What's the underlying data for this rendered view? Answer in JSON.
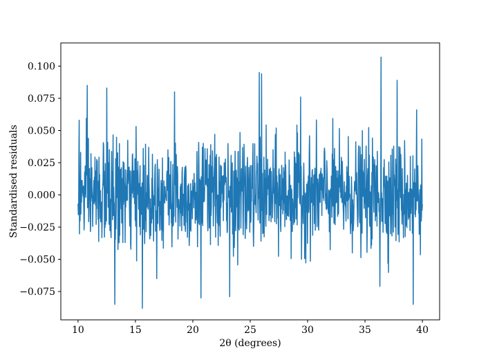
{
  "chart_data": {
    "type": "line",
    "title": "",
    "xlabel": "2θ (degrees)",
    "ylabel": "Standardised residuals",
    "xlim": [
      8.5,
      41.5
    ],
    "ylim": [
      -0.097,
      0.118
    ],
    "xticks": [
      10,
      15,
      20,
      25,
      30,
      35,
      40
    ],
    "xtick_labels": [
      "10",
      "15",
      "20",
      "25",
      "30",
      "35",
      "40"
    ],
    "yticks": [
      -0.075,
      -0.05,
      -0.025,
      0.0,
      0.025,
      0.05,
      0.075,
      0.1
    ],
    "ytick_labels": [
      "−0.075",
      "−0.050",
      "−0.025",
      "0.000",
      "0.025",
      "0.050",
      "0.075",
      "0.100"
    ],
    "grid": false,
    "legend": "none",
    "series_color": "#1f77b4",
    "sampling": {
      "x_start": 10.0,
      "x_end": 40.0,
      "num_points": 1200,
      "distribution": "noise centered at 0, std approx 0.02"
    },
    "notable_points": [
      {
        "x": 10.1,
        "y": 0.058
      },
      {
        "x": 10.8,
        "y": 0.085
      },
      {
        "x": 12.5,
        "y": 0.083
      },
      {
        "x": 13.2,
        "y": -0.085
      },
      {
        "x": 15.6,
        "y": -0.088
      },
      {
        "x": 18.4,
        "y": 0.08
      },
      {
        "x": 20.7,
        "y": -0.08
      },
      {
        "x": 23.2,
        "y": -0.079
      },
      {
        "x": 25.8,
        "y": 0.095
      },
      {
        "x": 26.0,
        "y": 0.094
      },
      {
        "x": 29.4,
        "y": 0.076
      },
      {
        "x": 36.4,
        "y": 0.107
      },
      {
        "x": 36.3,
        "y": -0.071
      },
      {
        "x": 37.8,
        "y": 0.089
      },
      {
        "x": 39.2,
        "y": -0.085
      },
      {
        "x": 39.5,
        "y": 0.066
      }
    ]
  }
}
